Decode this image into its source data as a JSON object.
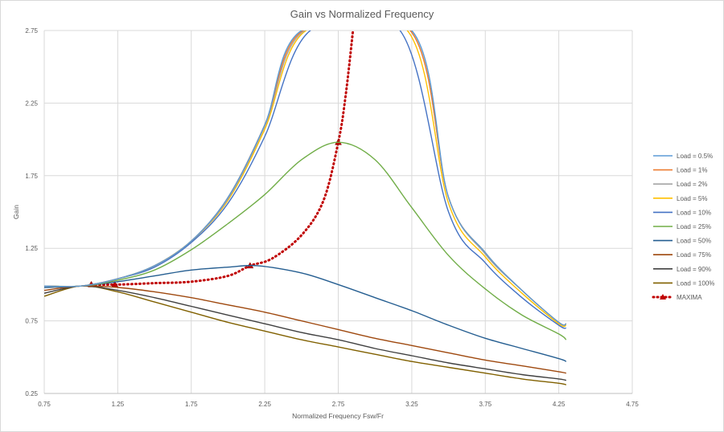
{
  "chart_data": {
    "type": "line",
    "title": "Gain vs Normalized Frequency",
    "xlabel": "Normalized Frequency Fsw/Fr",
    "ylabel": "Gain",
    "xlim": [
      0.75,
      4.75
    ],
    "ylim": [
      0.25,
      2.75
    ],
    "xticks": [
      "0.75",
      "1.25",
      "1.75",
      "2.25",
      "2.75",
      "3.25",
      "3.75",
      "4.25",
      "4.75"
    ],
    "yticks": [
      "0.25",
      "0.75",
      "1.25",
      "1.75",
      "2.25",
      "2.75"
    ],
    "grid": true,
    "legend_position": "right",
    "series": [
      {
        "name": "Load = 0.5%",
        "color": "#5B9BD5",
        "style": "solid",
        "points": [
          [
            0.75,
            0.99
          ],
          [
            1.0,
            0.99
          ],
          [
            1.25,
            1.04
          ],
          [
            1.5,
            1.13
          ],
          [
            1.75,
            1.3
          ],
          [
            2.0,
            1.6
          ],
          [
            2.25,
            2.1
          ],
          [
            2.5,
            2.75
          ],
          [
            3.25,
            2.75
          ],
          [
            3.5,
            1.6
          ],
          [
            3.75,
            1.22
          ],
          [
            4.0,
            0.96
          ],
          [
            4.25,
            0.74
          ],
          [
            4.3,
            0.73
          ]
        ]
      },
      {
        "name": "Load = 1%",
        "color": "#ED7D31",
        "style": "solid",
        "points": [
          [
            0.75,
            0.99
          ],
          [
            1.0,
            0.99
          ],
          [
            1.25,
            1.04
          ],
          [
            1.5,
            1.13
          ],
          [
            1.75,
            1.3
          ],
          [
            2.0,
            1.6
          ],
          [
            2.25,
            2.1
          ],
          [
            2.51,
            2.75
          ],
          [
            3.24,
            2.75
          ],
          [
            3.5,
            1.6
          ],
          [
            3.75,
            1.22
          ],
          [
            4.0,
            0.96
          ],
          [
            4.25,
            0.74
          ],
          [
            4.3,
            0.73
          ]
        ]
      },
      {
        "name": "Load = 2%",
        "color": "#A5A5A5",
        "style": "solid",
        "points": [
          [
            0.75,
            0.99
          ],
          [
            1.0,
            0.99
          ],
          [
            1.25,
            1.04
          ],
          [
            1.5,
            1.13
          ],
          [
            1.75,
            1.3
          ],
          [
            2.0,
            1.59
          ],
          [
            2.25,
            2.09
          ],
          [
            2.52,
            2.75
          ],
          [
            3.24,
            2.75
          ],
          [
            3.5,
            1.6
          ],
          [
            3.75,
            1.21
          ],
          [
            4.0,
            0.96
          ],
          [
            4.25,
            0.74
          ],
          [
            4.3,
            0.73
          ]
        ]
      },
      {
        "name": "Load = 5%",
        "color": "#FFC000",
        "style": "solid",
        "points": [
          [
            0.75,
            0.99
          ],
          [
            1.0,
            0.99
          ],
          [
            1.25,
            1.04
          ],
          [
            1.5,
            1.13
          ],
          [
            1.75,
            1.3
          ],
          [
            2.0,
            1.58
          ],
          [
            2.25,
            2.07
          ],
          [
            2.53,
            2.75
          ],
          [
            3.22,
            2.75
          ],
          [
            3.5,
            1.56
          ],
          [
            3.75,
            1.19
          ],
          [
            4.0,
            0.94
          ],
          [
            4.25,
            0.73
          ],
          [
            4.3,
            0.72
          ]
        ]
      },
      {
        "name": "Load = 10%",
        "color": "#4472C4",
        "style": "solid",
        "points": [
          [
            0.75,
            0.99
          ],
          [
            1.0,
            0.99
          ],
          [
            1.25,
            1.04
          ],
          [
            1.5,
            1.12
          ],
          [
            1.75,
            1.29
          ],
          [
            2.0,
            1.56
          ],
          [
            2.25,
            2.02
          ],
          [
            2.56,
            2.75
          ],
          [
            3.17,
            2.75
          ],
          [
            3.5,
            1.5
          ],
          [
            3.75,
            1.15
          ],
          [
            4.0,
            0.91
          ],
          [
            4.25,
            0.72
          ],
          [
            4.3,
            0.7
          ]
        ]
      },
      {
        "name": "Load = 25%",
        "color": "#70AD47",
        "style": "solid",
        "points": [
          [
            0.75,
            0.99
          ],
          [
            1.0,
            0.99
          ],
          [
            1.25,
            1.03
          ],
          [
            1.5,
            1.1
          ],
          [
            1.75,
            1.24
          ],
          [
            2.0,
            1.42
          ],
          [
            2.25,
            1.62
          ],
          [
            2.5,
            1.86
          ],
          [
            2.75,
            1.98
          ],
          [
            3.0,
            1.86
          ],
          [
            3.25,
            1.53
          ],
          [
            3.5,
            1.2
          ],
          [
            3.75,
            0.97
          ],
          [
            4.0,
            0.79
          ],
          [
            4.25,
            0.66
          ],
          [
            4.3,
            0.62
          ]
        ]
      },
      {
        "name": "Load = 50%",
        "color": "#255E91",
        "style": "solid",
        "points": [
          [
            0.75,
            0.98
          ],
          [
            1.0,
            0.99
          ],
          [
            1.25,
            1.02
          ],
          [
            1.5,
            1.06
          ],
          [
            1.75,
            1.1
          ],
          [
            2.0,
            1.12
          ],
          [
            2.2,
            1.13
          ],
          [
            2.5,
            1.08
          ],
          [
            2.75,
            1.0
          ],
          [
            3.0,
            0.91
          ],
          [
            3.25,
            0.82
          ],
          [
            3.5,
            0.72
          ],
          [
            3.75,
            0.63
          ],
          [
            4.0,
            0.56
          ],
          [
            4.25,
            0.49
          ],
          [
            4.3,
            0.47
          ]
        ]
      },
      {
        "name": "Load = 75%",
        "color": "#9E480E",
        "style": "solid",
        "points": [
          [
            0.75,
            0.96
          ],
          [
            1.0,
            0.99
          ],
          [
            1.25,
            0.98
          ],
          [
            1.5,
            0.95
          ],
          [
            1.75,
            0.91
          ],
          [
            2.0,
            0.86
          ],
          [
            2.25,
            0.81
          ],
          [
            2.5,
            0.75
          ],
          [
            2.75,
            0.69
          ],
          [
            3.0,
            0.63
          ],
          [
            3.25,
            0.58
          ],
          [
            3.5,
            0.53
          ],
          [
            3.75,
            0.48
          ],
          [
            4.0,
            0.44
          ],
          [
            4.25,
            0.4
          ],
          [
            4.3,
            0.39
          ]
        ]
      },
      {
        "name": "Load = 90%",
        "color": "#404040",
        "style": "solid",
        "points": [
          [
            0.75,
            0.94
          ],
          [
            1.0,
            0.99
          ],
          [
            1.25,
            0.96
          ],
          [
            1.5,
            0.91
          ],
          [
            1.75,
            0.85
          ],
          [
            2.0,
            0.79
          ],
          [
            2.25,
            0.73
          ],
          [
            2.5,
            0.67
          ],
          [
            2.75,
            0.62
          ],
          [
            3.0,
            0.56
          ],
          [
            3.25,
            0.51
          ],
          [
            3.5,
            0.46
          ],
          [
            3.75,
            0.42
          ],
          [
            4.0,
            0.38
          ],
          [
            4.25,
            0.35
          ],
          [
            4.3,
            0.34
          ]
        ]
      },
      {
        "name": "Load = 100%",
        "color": "#806000",
        "style": "solid",
        "points": [
          [
            0.75,
            0.92
          ],
          [
            1.0,
            0.99
          ],
          [
            1.25,
            0.95
          ],
          [
            1.5,
            0.88
          ],
          [
            1.75,
            0.81
          ],
          [
            2.0,
            0.74
          ],
          [
            2.25,
            0.68
          ],
          [
            2.5,
            0.62
          ],
          [
            2.75,
            0.57
          ],
          [
            3.0,
            0.52
          ],
          [
            3.25,
            0.47
          ],
          [
            3.5,
            0.43
          ],
          [
            3.75,
            0.39
          ],
          [
            4.0,
            0.35
          ],
          [
            4.25,
            0.32
          ],
          [
            4.3,
            0.31
          ]
        ]
      },
      {
        "name": "MAXIMA",
        "color": "#C00000",
        "style": "dotted-markers",
        "points": [
          [
            1.07,
            1.0
          ],
          [
            1.25,
            1.0
          ],
          [
            1.5,
            1.01
          ],
          [
            1.75,
            1.02
          ],
          [
            2.0,
            1.06
          ],
          [
            2.15,
            1.13
          ],
          [
            2.3,
            1.18
          ],
          [
            2.5,
            1.34
          ],
          [
            2.65,
            1.58
          ],
          [
            2.75,
            1.98
          ],
          [
            2.8,
            2.3
          ],
          [
            2.85,
            2.75
          ]
        ],
        "markers": [
          [
            1.07,
            1.0
          ],
          [
            1.23,
            1.0
          ],
          [
            2.15,
            1.13
          ],
          [
            2.75,
            1.98
          ]
        ]
      }
    ]
  }
}
